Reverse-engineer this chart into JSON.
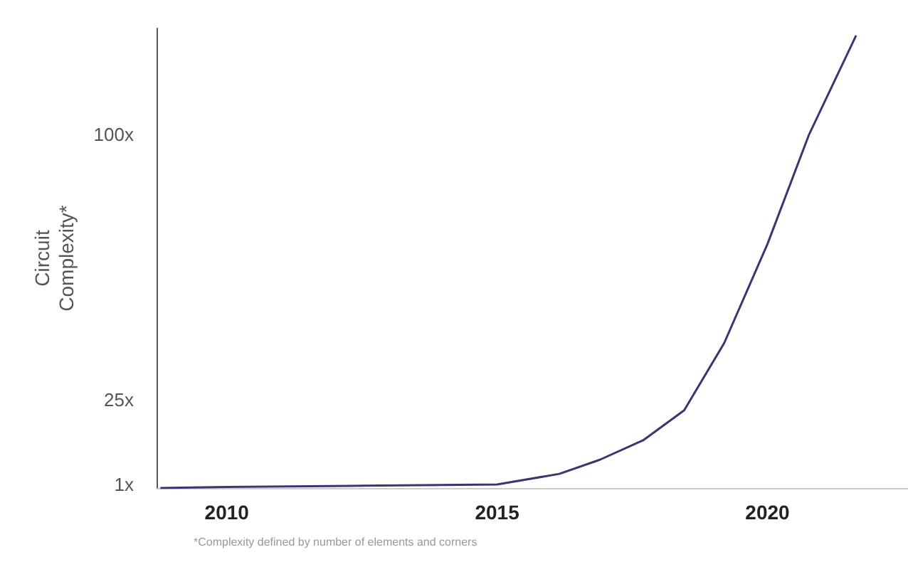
{
  "chart_data": {
    "type": "line",
    "ylabel": "Circuit\nComplexity*",
    "annotations": [
      "*Complexity defined by number of elements and corners"
    ],
    "x": [
      2008.77,
      2010,
      2012.3,
      2013.6,
      2015,
      2016.15,
      2016.9,
      2017.7,
      2018.46,
      2019.2,
      2020,
      2020.77,
      2021.64
    ],
    "series": [
      {
        "color": "#3b3570",
        "values": [
          0,
          0.3,
          0.6,
          0.8,
          1,
          4,
          8,
          13.5,
          22,
          41,
          69,
          100,
          128
        ]
      }
    ],
    "xlim": [
      2008.7,
      2022.6
    ],
    "xticks": [
      2010,
      2015,
      2020
    ],
    "ylim": [
      0,
      130
    ],
    "yticks": [
      {
        "value": 1,
        "label": "1x"
      },
      {
        "value": 25,
        "label": "25x"
      },
      {
        "value": 100,
        "label": "100x"
      }
    ],
    "grid": false,
    "marker": "none",
    "line_style": "solid"
  }
}
